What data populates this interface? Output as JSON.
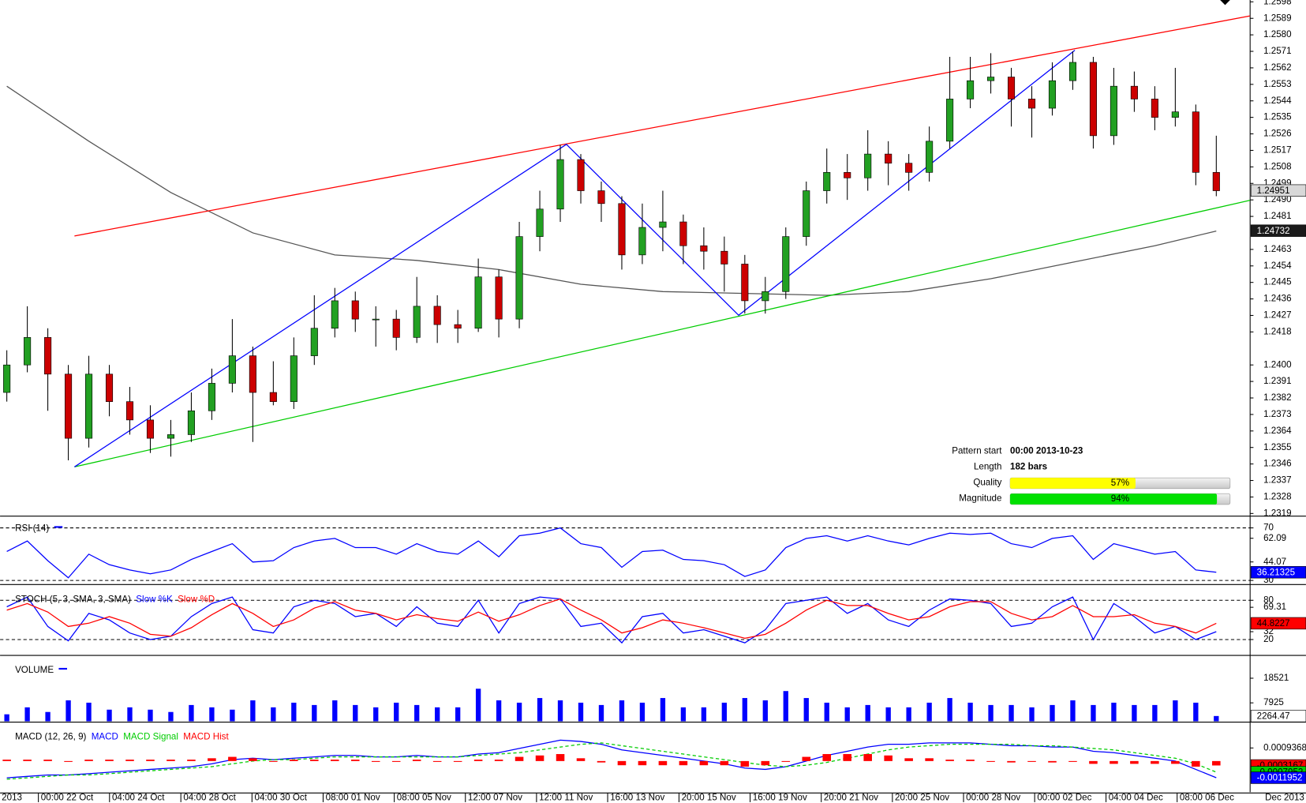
{
  "chart_data": [
    {
      "type": "candlestick",
      "xlim": [
        -0.33,
        60.65
      ],
      "ylim": [
        1.2318,
        1.2599
      ],
      "yticks": [
        1.2598,
        1.2589,
        {
          "value": 1.258,
          "label": "1.2580"
        },
        1.2571,
        1.2562,
        1.2553,
        1.2544,
        1.2535,
        1.2526,
        1.2517,
        1.2508,
        1.2499,
        {
          "value": 1.249,
          "label": "1.2490"
        },
        1.2481,
        1.2463,
        1.2454,
        1.2445,
        1.2436,
        1.2427,
        1.2418,
        {
          "value": 1.24,
          "label": "1.2400"
        },
        1.2391,
        1.2382,
        1.2373,
        1.2364,
        1.2355,
        1.2346,
        1.2337,
        1.2328,
        1.2319
      ],
      "up_color": "#22a022",
      "down_color": "#cc0000",
      "open": [
        1.2385,
        1.24,
        1.2415,
        1.2395,
        1.236,
        1.2395,
        1.238,
        1.237,
        1.236,
        1.2362,
        1.2375,
        1.239,
        1.2405,
        1.2385,
        1.238,
        1.2405,
        1.242,
        1.2435,
        1.2425,
        1.2425,
        1.2415,
        1.2432,
        1.2422,
        1.242,
        1.2448,
        1.2425,
        1.247,
        1.2485,
        1.2512,
        1.2495,
        1.2488,
        1.246,
        1.2475,
        1.2478,
        1.2465,
        1.2462,
        1.2455,
        1.2435,
        1.244,
        1.247,
        1.2495,
        1.2505,
        1.2502,
        1.2515,
        1.251,
        1.2505,
        1.2522,
        1.2545,
        1.2555,
        1.2557,
        1.2545,
        1.254,
        1.2555,
        1.2565,
        1.2525,
        1.2552,
        1.2545,
        1.2535,
        1.2538,
        1.2505
      ],
      "high": [
        1.2408,
        1.2432,
        1.242,
        1.24,
        1.2405,
        1.24,
        1.2388,
        1.2378,
        1.237,
        1.2385,
        1.2398,
        1.2425,
        1.241,
        1.2402,
        1.2415,
        1.2438,
        1.2442,
        1.244,
        1.2432,
        1.243,
        1.2448,
        1.2438,
        1.243,
        1.2458,
        1.2452,
        1.2478,
        1.2495,
        1.252,
        1.2515,
        1.25,
        1.2492,
        1.2488,
        1.2495,
        1.2482,
        1.2475,
        1.247,
        1.246,
        1.2448,
        1.2475,
        1.25,
        1.2518,
        1.2515,
        1.2528,
        1.2522,
        1.2515,
        1.253,
        1.2568,
        1.2568,
        1.257,
        1.2562,
        1.2552,
        1.2565,
        1.2571,
        1.2568,
        1.2562,
        1.256,
        1.2552,
        1.2562,
        1.2542,
        1.2525
      ],
      "low": [
        1.238,
        1.2396,
        1.2375,
        1.2348,
        1.2355,
        1.2372,
        1.2362,
        1.2352,
        1.235,
        1.2358,
        1.237,
        1.2385,
        1.2358,
        1.2378,
        1.2376,
        1.24,
        1.2415,
        1.2418,
        1.241,
        1.2408,
        1.2412,
        1.2412,
        1.2412,
        1.2418,
        1.2415,
        1.242,
        1.2462,
        1.2478,
        1.2488,
        1.2478,
        1.2452,
        1.2455,
        1.2462,
        1.2455,
        1.2452,
        1.244,
        1.2428,
        1.2428,
        1.2436,
        1.2465,
        1.2488,
        1.249,
        1.2495,
        1.2498,
        1.2495,
        1.25,
        1.2518,
        1.254,
        1.2548,
        1.253,
        1.2524,
        1.2536,
        1.255,
        1.2518,
        1.252,
        1.2538,
        1.2528,
        1.253,
        1.2498,
        1.2492
      ],
      "close": [
        1.24,
        1.2415,
        1.2395,
        1.236,
        1.2395,
        1.238,
        1.237,
        1.236,
        1.2362,
        1.2375,
        1.239,
        1.2405,
        1.2385,
        1.238,
        1.2405,
        1.242,
        1.2435,
        1.2425,
        1.2425,
        1.2415,
        1.2432,
        1.2422,
        1.242,
        1.2448,
        1.2425,
        1.247,
        1.2485,
        1.2512,
        1.2495,
        1.2488,
        1.246,
        1.2475,
        1.2478,
        1.2465,
        1.2462,
        1.2455,
        1.2435,
        1.244,
        1.247,
        1.2495,
        1.2505,
        1.2502,
        1.2515,
        1.251,
        1.2505,
        1.2522,
        1.2545,
        1.2555,
        1.2557,
        1.2545,
        1.254,
        1.2555,
        1.2565,
        1.2525,
        1.2552,
        1.2545,
        1.2535,
        1.2538,
        1.2505,
        1.2495
      ],
      "overlays": [
        {
          "color": "#555555",
          "x": [
            0,
            4,
            8,
            12,
            16,
            20,
            24,
            28,
            32,
            36,
            40,
            44,
            48,
            52,
            56,
            59
          ],
          "values": [
            1.2552,
            1.2522,
            1.2494,
            1.2472,
            1.246,
            1.2457,
            1.2452,
            1.2444,
            1.244,
            1.2439,
            1.2438,
            1.244,
            1.2447,
            1.2456,
            1.2465,
            1.2473
          ]
        },
        {
          "color": "#ff0000",
          "x": [
            3.3,
            60.65
          ],
          "values": [
            1.24703,
            1.25903
          ]
        },
        {
          "color": "#00cc00",
          "x": [
            3.3,
            60.65
          ],
          "values": [
            1.23444,
            1.24898
          ]
        },
        {
          "color": "#0000ff",
          "x": [
            3.3,
            27.3,
            35.7,
            52.1
          ],
          "values": [
            1.23444,
            1.25203,
            1.24271,
            1.25716
          ]
        }
      ],
      "current_labels": [
        {
          "value": 1.24951,
          "fill": "#d8d8d8",
          "text_color": "#000000"
        },
        {
          "value": 1.24732,
          "fill": "#1a1a1a",
          "text_color": "#ffffff"
        }
      ]
    },
    {
      "type": "line",
      "title": "RSI (14)",
      "xlim": [
        -0.33,
        60.65
      ],
      "ylim": [
        27.5,
        78.3
      ],
      "yticks": [
        70,
        62.09,
        44.07,
        30
      ],
      "levels": [
        70,
        30
      ],
      "series": [
        {
          "color": "#0000ff",
          "values": [
            52,
            60,
            45,
            32,
            50,
            42,
            38,
            35,
            38,
            46,
            52,
            58,
            44,
            45,
            55,
            60,
            62,
            55,
            55,
            50,
            58,
            52,
            50,
            60,
            48,
            64,
            66,
            70,
            58,
            55,
            40,
            52,
            53,
            46,
            45,
            42,
            33,
            38,
            55,
            62,
            64,
            60,
            64,
            60,
            57,
            62,
            66,
            65,
            66,
            58,
            55,
            62,
            64,
            46,
            58,
            54,
            50,
            52,
            38,
            36.21325
          ]
        }
      ],
      "current_labels": [
        {
          "value": 36.21325,
          "fill": "#0000ff",
          "text_color": "#ffffff"
        }
      ]
    },
    {
      "type": "line",
      "title": "STOCH (5, 3, SMA, 3, SMA)",
      "xlim": [
        -0.33,
        60.65
      ],
      "ylim": [
        -3,
        99
      ],
      "yticks": [
        80,
        69.31,
        32,
        20
      ],
      "levels": [
        80,
        20
      ],
      "series": [
        {
          "name": "Slow %K",
          "color": "#0000ff",
          "values": [
            70,
            85,
            40,
            18,
            60,
            50,
            30,
            20,
            25,
            55,
            75,
            85,
            35,
            30,
            70,
            80,
            75,
            55,
            60,
            40,
            70,
            45,
            40,
            80,
            30,
            75,
            85,
            82,
            40,
            45,
            15,
            55,
            60,
            30,
            35,
            25,
            15,
            35,
            75,
            80,
            85,
            60,
            75,
            50,
            40,
            65,
            82,
            80,
            75,
            40,
            45,
            70,
            85,
            20,
            75,
            55,
            30,
            40,
            20,
            32
          ]
        },
        {
          "name": "Slow %D",
          "color": "#ff0000",
          "values": [
            65,
            75,
            62,
            40,
            45,
            55,
            45,
            28,
            25,
            38,
            58,
            75,
            60,
            40,
            50,
            68,
            78,
            65,
            60,
            50,
            58,
            52,
            48,
            62,
            48,
            58,
            72,
            82,
            65,
            50,
            30,
            38,
            50,
            45,
            38,
            30,
            22,
            28,
            45,
            65,
            80,
            72,
            72,
            60,
            50,
            55,
            70,
            78,
            78,
            60,
            50,
            55,
            72,
            55,
            55,
            58,
            45,
            40,
            30,
            44.8227
          ]
        }
      ],
      "current_labels": [
        {
          "value": 44.8227,
          "fill": "#ff0000",
          "text_color": "#000000"
        }
      ]
    },
    {
      "type": "bar",
      "title": "VOLUME",
      "xlim": [
        -0.33,
        60.65
      ],
      "ylim": [
        0,
        26900
      ],
      "yticks": [
        18521,
        7925
      ],
      "series": [
        {
          "color": "#0000ff",
          "values": [
            3000,
            6000,
            4000,
            9000,
            8000,
            5000,
            6000,
            5000,
            4000,
            7000,
            6000,
            5000,
            9000,
            6000,
            8000,
            7000,
            9000,
            7000,
            6000,
            8000,
            7000,
            6000,
            6000,
            14000,
            9000,
            8000,
            10000,
            9000,
            8000,
            7000,
            9000,
            8000,
            10000,
            6000,
            6000,
            8000,
            10000,
            9000,
            13000,
            10000,
            8000,
            6000,
            7000,
            6000,
            6000,
            8000,
            10000,
            8000,
            7000,
            7000,
            6000,
            7000,
            9000,
            7000,
            8000,
            7000,
            7000,
            9000,
            8000,
            2264.47
          ]
        }
      ],
      "current_labels": [
        {
          "value": 2264.47,
          "fill": "#ffffff",
          "text_color": "#000000"
        }
      ]
    },
    {
      "type": "combo",
      "title": "MACD (12, 26, 9)",
      "xlim": [
        -0.33,
        60.65
      ],
      "ylim": [
        -0.0022271,
        0.0025486
      ],
      "yticks": [
        0.0009368
      ],
      "series": [
        {
          "name": "MACD",
          "kind": "line",
          "color": "#0000ff",
          "values": [
            -0.0012,
            -0.0011,
            -0.001,
            -0.001,
            -0.0009,
            -0.0008,
            -0.0007,
            -0.0006,
            -0.0005,
            -0.0004,
            -0.0002,
            0.0001,
            0.0002,
            0.0001,
            0.0002,
            0.0003,
            0.0004,
            0.0004,
            0.0003,
            0.0003,
            0.0004,
            0.0003,
            0.0003,
            0.0005,
            0.0006,
            0.0009,
            0.0012,
            0.0015,
            0.0014,
            0.0012,
            0.0008,
            0.0006,
            0.0004,
            0.0002,
            0,
            -0.0002,
            -0.0005,
            -0.0006,
            -0.0004,
            0,
            0.0004,
            0.0007,
            0.001,
            0.0012,
            0.0012,
            0.0013,
            0.0013,
            0.0013,
            0.0012,
            0.0011,
            0.0011,
            0.001,
            0.001,
            0.0007,
            0.0006,
            0.0004,
            0.0002,
            0,
            -0.0006,
            -0.0011952
          ]
        },
        {
          "name": "MACD Signal",
          "kind": "dashed",
          "color": "#00cc00",
          "values": [
            -0.0013,
            -0.0012,
            -0.0011,
            -0.001,
            -0.001,
            -0.0009,
            -0.0008,
            -0.0007,
            -0.0006,
            -0.0005,
            -0.0004,
            -0.0002,
            0,
            0.0001,
            0.0001,
            0.0002,
            0.0003,
            0.0003,
            0.0003,
            0.0003,
            0.0003,
            0.0003,
            0.0003,
            0.0004,
            0.0005,
            0.0006,
            0.0008,
            0.001,
            0.0012,
            0.0013,
            0.0011,
            0.0009,
            0.0007,
            0.0005,
            0.0003,
            0.0001,
            -0.0001,
            -0.0003,
            -0.0004,
            -0.0003,
            -0.0001,
            0.0002,
            0.0005,
            0.0008,
            0.001,
            0.0011,
            0.0012,
            0.0012,
            0.0012,
            0.0012,
            0.0011,
            0.0011,
            0.001,
            0.0009,
            0.0008,
            0.0006,
            0.0004,
            0.0002,
            -0.0002,
            -0.0007952
          ]
        },
        {
          "name": "MACD Hist",
          "kind": "bar",
          "color": "#ff0000",
          "values": [
            0.0001,
            0.0001,
            0.0001,
            0,
            0.0001,
            0.0001,
            0.0001,
            0.0001,
            0.0001,
            0.0001,
            0.0002,
            0.0003,
            0.0002,
            0,
            0.0001,
            0.0001,
            0.0001,
            0.0001,
            0,
            0,
            0.0001,
            0,
            0,
            0.0001,
            0.0001,
            0.0003,
            0.0004,
            0.0005,
            0.0002,
            -0.0001,
            -0.0003,
            -0.0003,
            -0.0003,
            -0.0003,
            -0.0003,
            -0.0003,
            -0.0004,
            -0.0003,
            0,
            0.0003,
            0.0005,
            0.0005,
            0.0005,
            0.0004,
            0.0002,
            0.0002,
            0.0001,
            0.0001,
            0,
            -0.0001,
            0,
            -0.0001,
            0,
            -0.0002,
            -0.0002,
            -0.0002,
            -0.0002,
            -0.0002,
            -0.0004,
            -0.0003167
          ]
        }
      ],
      "current_labels": [
        {
          "value": -0.0003167,
          "fill": "#ff0000",
          "text_color": "#000000"
        },
        {
          "value": -0.0007952,
          "fill": "#00cc00",
          "text_color": "#000000"
        },
        {
          "value": -0.0011952,
          "fill": "#0000ff",
          "text_color": "#ffffff"
        }
      ],
      "xticks": [
        {
          "value": 1.54,
          "label": "00:00 22 Oct"
        },
        {
          "value": 5.01,
          "label": "04:00 24 Oct"
        },
        {
          "value": 8.49,
          "label": "04:00 28 Oct"
        },
        {
          "value": 11.96,
          "label": "04:00 30 Oct"
        },
        {
          "value": 15.43,
          "label": "08:00 01 Nov"
        },
        {
          "value": 18.9,
          "label": "08:00 05 Nov"
        },
        {
          "value": 22.37,
          "label": "12:00 07 Nov"
        },
        {
          "value": 25.84,
          "label": "12:00 11 Nov"
        },
        {
          "value": 29.31,
          "label": "16:00 13 Nov"
        },
        {
          "value": 32.79,
          "label": "20:00 15 Nov"
        },
        {
          "value": 36.26,
          "label": "16:00 19 Nov"
        },
        {
          "value": 39.73,
          "label": "20:00 21 Nov"
        },
        {
          "value": 43.2,
          "label": "20:00 25 Nov"
        },
        {
          "value": 46.67,
          "label": "00:00 28 Nov"
        },
        {
          "value": 50.14,
          "label": "00:00 02 Dec"
        },
        {
          "value": 53.62,
          "label": "04:00 04 Dec"
        },
        {
          "value": 57.09,
          "label": "08:00 06 Dec"
        }
      ],
      "x_start_label": "2013",
      "x_end_label": "Dec 2013"
    }
  ],
  "pattern": {
    "rows": [
      {
        "label": "Pattern start",
        "text": "00:00 2013-10-23"
      },
      {
        "label": "Length",
        "text": "182 bars"
      },
      {
        "label": "Quality",
        "value": 57,
        "value_label": "57%",
        "color": "#ffff00"
      },
      {
        "label": "Magnitude",
        "value": 94,
        "value_label": "94%",
        "color": "#00e000"
      }
    ]
  }
}
